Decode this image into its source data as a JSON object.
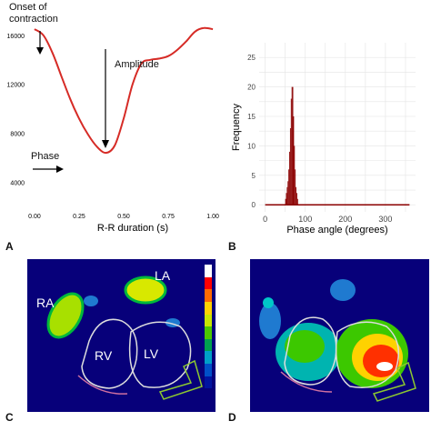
{
  "panel_labels": {
    "a": "A",
    "b": "B",
    "c": "C",
    "d": "D"
  },
  "chart_data": [
    {
      "type": "line",
      "xlabel": "R-R duration (s)",
      "xticks": [
        "0.00",
        "0.25",
        "0.50",
        "0.75",
        "1.00"
      ],
      "yticks": [
        "4000",
        "8000",
        "12000",
        "16000"
      ],
      "xlim": [
        -0.02,
        1.02
      ],
      "ylim": [
        1800,
        17400
      ],
      "x": [
        0.0,
        0.05,
        0.1,
        0.15,
        0.2,
        0.25,
        0.3,
        0.35,
        0.4,
        0.45,
        0.5,
        0.55,
        0.6,
        0.65,
        0.7,
        0.75,
        0.8,
        0.85,
        0.9,
        0.95,
        1.0
      ],
      "y": [
        16500,
        16000,
        14600,
        12700,
        10800,
        9200,
        7900,
        6900,
        6400,
        7000,
        9200,
        12000,
        13700,
        14000,
        14100,
        14300,
        14800,
        15500,
        16300,
        16600,
        16500
      ],
      "color": "#d62b26",
      "annotations": {
        "onset": "Onset of contraction",
        "amplitude": "Amplitude",
        "phase": "Phase"
      }
    },
    {
      "type": "bar",
      "xlabel": "Phase angle (degrees)",
      "ylabel": "Frequency",
      "xticks": [
        "0",
        "100",
        "200",
        "300"
      ],
      "yticks": [
        "0",
        "5",
        "10",
        "15",
        "20",
        "25"
      ],
      "xlim": [
        -15,
        375
      ],
      "ylim": [
        -1.2,
        27.5
      ],
      "bin_width": 2,
      "bin_starts": [
        50,
        52,
        54,
        56,
        58,
        60,
        62,
        64,
        66,
        68,
        70,
        72,
        74,
        76,
        78,
        80
      ],
      "values": [
        1,
        2,
        3,
        4,
        6,
        9,
        13,
        18,
        20,
        20,
        15,
        10,
        6,
        3,
        2,
        1
      ],
      "baseline_range": [
        0,
        360
      ],
      "color": "#8b0000"
    }
  ],
  "panel_c": {
    "labels": {
      "ra": "RA",
      "la": "LA",
      "rv": "RV",
      "lv": "LV"
    }
  },
  "colorbar": {
    "colors": [
      "#ffffff",
      "#ff0000",
      "#ff6a00",
      "#ffd200",
      "#c8e600",
      "#4cc800",
      "#00a050",
      "#00a0c8",
      "#0050c8",
      "#0014a0",
      "#07007a"
    ]
  },
  "colors": {
    "background": "#07007a",
    "line": "#d62b26",
    "hist": "#8b0000"
  }
}
